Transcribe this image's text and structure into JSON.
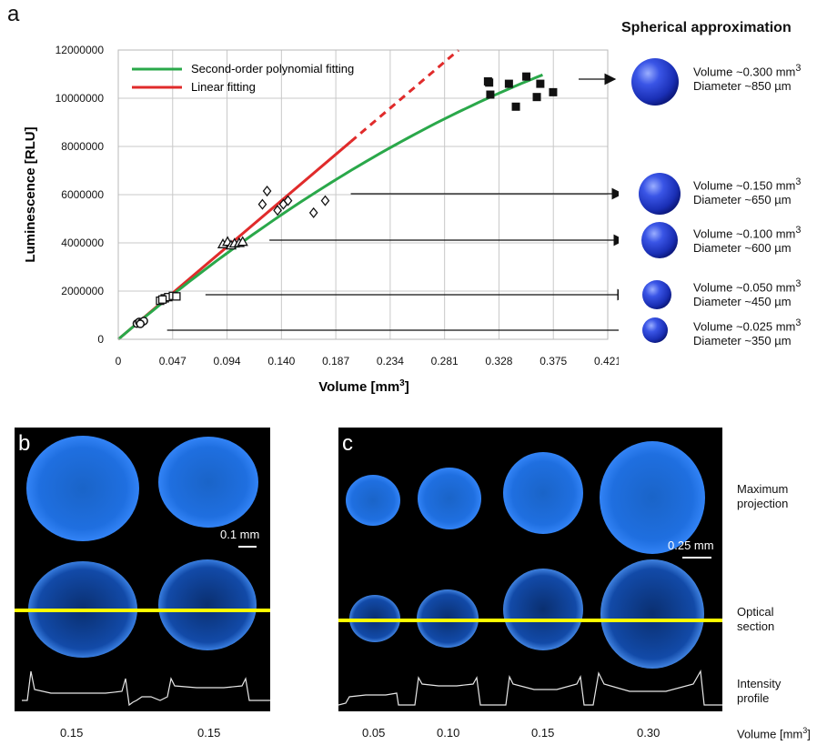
{
  "panel_a": {
    "letter": "a",
    "sphere_title": "Spherical approximation",
    "spheres": [
      {
        "volume": "Volume ~0.300 mm",
        "sup": "3",
        "diameter": "Diameter ~850 µm",
        "data_x": 0.18
      },
      {
        "volume": "Volume ~0.150 mm",
        "sup": "3",
        "diameter": "Diameter ~650 µm",
        "data_x": 0.2
      },
      {
        "volume": "Volume ~0.100 mm",
        "sup": "3",
        "diameter": "Diameter ~600 µm",
        "data_x": 0.13
      },
      {
        "volume": "Volume ~0.050 mm",
        "sup": "3",
        "diameter": "Diameter ~450 µm",
        "data_x": 0.075
      },
      {
        "volume": "Volume ~0.025 mm",
        "sup": "3",
        "diameter": "Diameter ~350 µm",
        "data_x": 0.042
      }
    ]
  },
  "chart_data": {
    "type": "scatter",
    "xlabel": "Volume [mm",
    "xlabel_sup": "3",
    "xlabel_end": "]",
    "ylabel": "Luminescence [RLU]",
    "xlim": [
      0,
      0.421
    ],
    "ylim": [
      0,
      12000000
    ],
    "x_ticks": [
      "0",
      "0.047",
      "0.094",
      "0.140",
      "0.187",
      "0.234",
      "0.281",
      "0.328",
      "0.375",
      "0.421"
    ],
    "y_ticks": [
      "0",
      "2000000",
      "4000000",
      "6000000",
      "8000000",
      "10000000",
      "12000000"
    ],
    "grid": true,
    "legend_position": "top-left",
    "legend": [
      {
        "name": "Second-order polynomial fitting",
        "color": "#2aa84a"
      },
      {
        "name": "Linear fitting",
        "color": "#e02b2b"
      }
    ],
    "series": [
      {
        "marker": "circle",
        "points": [
          [
            0.016,
            650000
          ],
          [
            0.018,
            720000
          ],
          [
            0.02,
            700000
          ],
          [
            0.022,
            760000
          ],
          [
            0.019,
            640000
          ]
        ]
      },
      {
        "marker": "square-open",
        "points": [
          [
            0.036,
            1600000
          ],
          [
            0.04,
            1700000
          ],
          [
            0.043,
            1750000
          ],
          [
            0.047,
            1800000
          ],
          [
            0.05,
            1780000
          ],
          [
            0.038,
            1650000
          ]
        ]
      },
      {
        "marker": "triangle",
        "points": [
          [
            0.09,
            3950000
          ],
          [
            0.094,
            4050000
          ],
          [
            0.097,
            3900000
          ],
          [
            0.1,
            3980000
          ],
          [
            0.104,
            4000000
          ],
          [
            0.107,
            4050000
          ]
        ]
      },
      {
        "marker": "diamond",
        "points": [
          [
            0.124,
            5600000
          ],
          [
            0.128,
            6150000
          ],
          [
            0.137,
            5350000
          ],
          [
            0.142,
            5600000
          ],
          [
            0.146,
            5750000
          ],
          [
            0.168,
            5250000
          ],
          [
            0.178,
            5750000
          ]
        ]
      },
      {
        "marker": "square-filled",
        "points": [
          [
            0.318,
            10700000
          ],
          [
            0.319,
            10650000
          ],
          [
            0.32,
            10150000
          ],
          [
            0.336,
            10600000
          ],
          [
            0.342,
            9650000
          ],
          [
            0.351,
            10900000
          ],
          [
            0.36,
            10050000
          ],
          [
            0.363,
            10600000
          ],
          [
            0.374,
            10250000
          ]
        ]
      }
    ],
    "linear_fit": {
      "slope": 41000000,
      "solid_to": 0.2,
      "dashed_to": 0.31
    },
    "poly_fit": {
      "a": -30000000,
      "b": 41000000,
      "c": 0,
      "x_end": 0.365
    }
  },
  "panel_b": {
    "letter": "b",
    "scale": "0.1 mm",
    "volumes": [
      "0.15",
      "0.15"
    ]
  },
  "panel_c": {
    "letter": "c",
    "scale": "0.25 mm",
    "volumes": [
      "0.05",
      "0.10",
      "0.15",
      "0.30"
    ],
    "row_labels": [
      "Maximum projection",
      "Optical section",
      "Intensity profile"
    ],
    "volume_axis": "Volume [mm",
    "volume_axis_sup": "3",
    "volume_axis_end": "]"
  }
}
